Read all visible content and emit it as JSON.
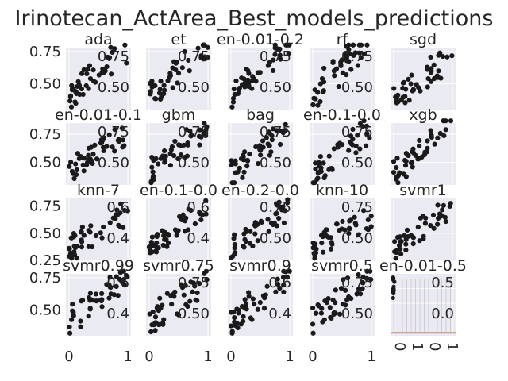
{
  "chart_data": {
    "type": "scatter",
    "title": "Irinotecan_ActArea_Best_models_predictions",
    "colors": {
      "axes_bg": "#eaeaf2",
      "grid": "#ffffff",
      "points": "#1a1a1a",
      "text": "#262626",
      "strip": "#c89080"
    },
    "x_ticks": [
      "0",
      "1"
    ],
    "grid": true,
    "panels": [
      {
        "title": "ada",
        "ylim": [
          0.3,
          0.78
        ],
        "y_ticks": [
          "0.50",
          "0.75"
        ],
        "inner_labels": [
          "0.75",
          "0.50"
        ],
        "slope": 0.38,
        "seed": 11
      },
      {
        "title": "et",
        "ylim": [
          0.3,
          0.78
        ],
        "inner_labels": [
          "0.75",
          "0.50"
        ],
        "slope": 0.42,
        "seed": 23
      },
      {
        "title": "en-0.01-0.2",
        "ylim": [
          0.3,
          0.78
        ],
        "inner_labels": [
          "0.75",
          "0.50"
        ],
        "slope": 0.4,
        "seed": 37
      },
      {
        "title": "rf",
        "ylim": [
          0.3,
          0.78
        ],
        "inner_labels": [
          "0.75",
          "0.50"
        ],
        "slope": 0.45,
        "seed": 41
      },
      {
        "title": "sgd",
        "ylim": [
          0.3,
          0.78
        ],
        "slope": 0.3,
        "seed": 53
      },
      {
        "title": "en-0.01-0.1",
        "ylim": [
          0.3,
          0.85
        ],
        "y_ticks": [
          "0.50",
          "0.75"
        ],
        "inner_labels": [
          "0.75",
          "0.50"
        ],
        "slope": 0.38,
        "seed": 61
      },
      {
        "title": "gbm",
        "ylim": [
          0.3,
          0.85
        ],
        "inner_labels": [
          "0.75",
          "0.50"
        ],
        "slope": 0.42,
        "seed": 71
      },
      {
        "title": "bag",
        "ylim": [
          0.3,
          0.85
        ],
        "inner_labels": [
          "0.75",
          "0.50"
        ],
        "slope": 0.4,
        "seed": 83
      },
      {
        "title": "en-0.1-0.0",
        "ylim": [
          0.3,
          0.85
        ],
        "inner_labels": [
          "0.75",
          "0.50"
        ],
        "slope": 0.4,
        "seed": 97
      },
      {
        "title": "xgb",
        "ylim": [
          0.3,
          0.85
        ],
        "slope": 0.45,
        "seed": 101
      },
      {
        "title": "knn-7",
        "ylim": [
          0.25,
          0.82
        ],
        "y_ticks": [
          "0.25",
          "0.50",
          "0.75"
        ],
        "inner_labels": [
          "0.6",
          "0.4"
        ],
        "slope": 0.35,
        "seed": 113
      },
      {
        "title": "en-0.1-0.0",
        "ylim": [
          0.25,
          0.82
        ],
        "inner_labels": [
          "0.6",
          "0.4"
        ],
        "slope": 0.4,
        "seed": 127
      },
      {
        "title": "en-0.2-0.0",
        "ylim": [
          0.25,
          0.82
        ],
        "inner_labels": [
          "0.75",
          "0.50"
        ],
        "slope": 0.4,
        "seed": 131
      },
      {
        "title": "knn-10",
        "ylim": [
          0.25,
          0.82
        ],
        "inner_labels": [
          "0.75",
          "0.50"
        ],
        "slope": 0.3,
        "seed": 139
      },
      {
        "title": "svmr1",
        "ylim": [
          0.25,
          0.82
        ],
        "slope": 0.4,
        "seed": 149
      },
      {
        "title": "svmr0.99",
        "ylim": [
          0.3,
          0.78
        ],
        "y_ticks": [
          "0.50",
          "0.75"
        ],
        "inner_labels": [
          "0.6",
          "0.4"
        ],
        "slope": 0.35,
        "seed": 151
      },
      {
        "title": "svmr0.75",
        "ylim": [
          0.3,
          0.78
        ],
        "inner_labels": [
          "0.75",
          "0.50"
        ],
        "slope": 0.35,
        "seed": 163
      },
      {
        "title": "svmr0.9",
        "ylim": [
          0.3,
          0.78
        ],
        "inner_labels": [
          "0.6",
          "0.4"
        ],
        "slope": 0.35,
        "seed": 173
      },
      {
        "title": "svmr0.5",
        "ylim": [
          0.3,
          0.78
        ],
        "inner_labels": [
          "0.75",
          "0.50"
        ],
        "slope": 0.4,
        "seed": 181
      },
      {
        "title": "en-0.01-0.5",
        "ylim": [
          -0.05,
          1.0
        ],
        "kind": "strip",
        "inner_labels": [
          "0.5",
          "0.0"
        ],
        "seed": 191
      }
    ]
  }
}
